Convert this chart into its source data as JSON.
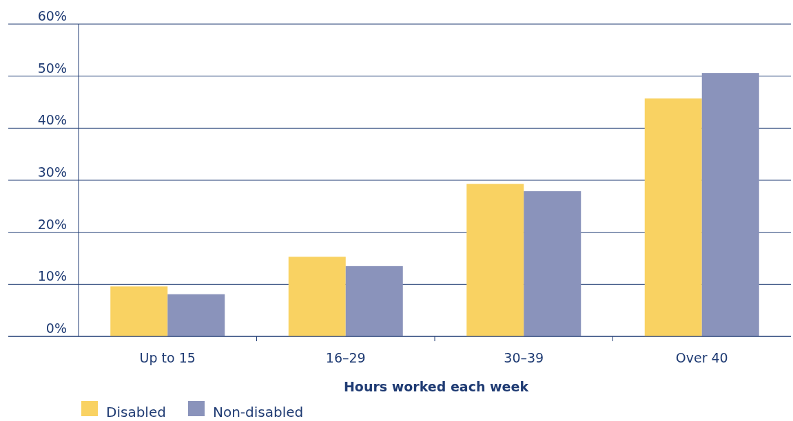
{
  "chart_data": {
    "type": "bar",
    "xlabel": "Hours worked each week",
    "categories": [
      "Up to 15",
      "16–29",
      "30–39",
      "Over 40"
    ],
    "series": [
      {
        "name": "Disabled",
        "color": "#f9d262",
        "values": [
          9.6,
          15.3,
          29.3,
          45.7
        ]
      },
      {
        "name": "Non-disabled",
        "color": "#8a93bb",
        "values": [
          8.1,
          13.5,
          27.9,
          50.6
        ]
      }
    ],
    "ylim": [
      0,
      60
    ],
    "yticks": [
      {
        "value": 0,
        "label": "0%"
      },
      {
        "value": 10,
        "label": "10%"
      },
      {
        "value": 20,
        "label": "20%"
      },
      {
        "value": 30,
        "label": "30%"
      },
      {
        "value": 40,
        "label": "40%"
      },
      {
        "value": 50,
        "label": "50%"
      },
      {
        "value": 60,
        "label": "60%"
      }
    ],
    "grid": "y",
    "legend": "bottom left"
  }
}
